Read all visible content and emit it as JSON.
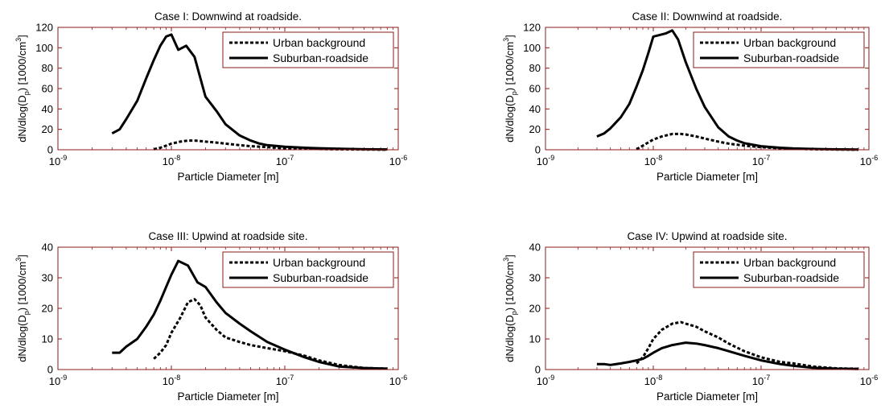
{
  "chart_data": [
    {
      "type": "line",
      "title": "Case I: Downwind at roadside.",
      "xlabel": "Particle Diameter [m]",
      "ylabel": "dN/dlog(D_p) [1000/cm^3]",
      "xscale": "log",
      "xlim": [
        1e-09,
        1e-06
      ],
      "ylim": [
        0,
        120
      ],
      "x_ticks": [
        1e-09,
        1e-08,
        1e-07,
        1e-06
      ],
      "x_tick_labels": [
        "10-9",
        "10-8",
        "10-7",
        "10-6"
      ],
      "y_ticks": [
        0,
        20,
        40,
        60,
        80,
        100,
        120
      ],
      "legend": "top-right",
      "series": [
        {
          "name": "Urban background",
          "style": "dashed",
          "x": [
            7e-09,
            8e-09,
            9e-09,
            1e-08,
            1.2e-08,
            1.4e-08,
            1.6e-08,
            1.8e-08,
            2e-08,
            2.5e-08,
            3e-08,
            4e-08,
            5e-08,
            7e-08,
            1e-07,
            1.5e-07,
            2e-07,
            3e-07,
            5e-07,
            8e-07
          ],
          "y": [
            0.5,
            2,
            4,
            6,
            8,
            9,
            9,
            8.5,
            8,
            7,
            6,
            4.5,
            3.5,
            2.5,
            1.5,
            1,
            0.7,
            0.4,
            0.2,
            0.1
          ]
        },
        {
          "name": "Suburban-roadside",
          "style": "solid",
          "x": [
            3e-09,
            3.5e-09,
            4e-09,
            5e-09,
            6e-09,
            7e-09,
            8e-09,
            9e-09,
            1e-08,
            1.15e-08,
            1.35e-08,
            1.6e-08,
            2e-08,
            2.5e-08,
            3e-08,
            4e-08,
            5e-08,
            6e-08,
            7e-08,
            1e-07,
            1.5e-07,
            2e-07,
            3e-07,
            5e-07,
            8e-07
          ],
          "y": [
            16,
            20,
            30,
            48,
            70,
            88,
            102,
            111,
            113,
            98,
            102,
            91,
            52,
            38,
            25,
            14,
            9,
            6,
            4.5,
            3,
            2,
            1.5,
            1,
            0.5,
            0.3
          ]
        }
      ]
    },
    {
      "type": "line",
      "title": "Case II: Downwind at roadside.",
      "xlabel": "Particle Diameter [m]",
      "ylabel": "dN/dlog(D_p) [1000/cm^3]",
      "xscale": "log",
      "xlim": [
        1e-09,
        1e-06
      ],
      "ylim": [
        0,
        120
      ],
      "x_ticks": [
        1e-09,
        1e-08,
        1e-07,
        1e-06
      ],
      "x_tick_labels": [
        "10-9",
        "10-8",
        "10-7",
        "10-6"
      ],
      "y_ticks": [
        0,
        20,
        40,
        60,
        80,
        100,
        120
      ],
      "legend": "top-right",
      "series": [
        {
          "name": "Urban background",
          "style": "dashed",
          "x": [
            7e-09,
            8e-09,
            1e-08,
            1.2e-08,
            1.5e-08,
            1.8e-08,
            2e-08,
            2.5e-08,
            3e-08,
            4e-08,
            5e-08,
            7e-08,
            1e-07,
            1.5e-07,
            2e-07,
            3e-07,
            5e-07,
            8e-07
          ],
          "y": [
            0.5,
            4,
            10,
            13,
            15.5,
            15.5,
            15,
            13,
            11,
            8,
            6,
            4,
            2.5,
            1.5,
            1,
            0.5,
            0.2,
            0.1
          ]
        },
        {
          "name": "Suburban-roadside",
          "style": "solid",
          "x": [
            3e-09,
            3.5e-09,
            4e-09,
            5e-09,
            6e-09,
            7e-09,
            8e-09,
            9e-09,
            1e-08,
            1.1e-08,
            1.3e-08,
            1.5e-08,
            1.7e-08,
            2e-08,
            2.5e-08,
            3e-08,
            4e-08,
            5e-08,
            6e-08,
            7e-08,
            1e-07,
            1.5e-07,
            2e-07,
            3e-07,
            5e-07,
            8e-07
          ],
          "y": [
            13,
            16,
            21,
            32,
            45,
            62,
            78,
            95,
            111,
            112,
            114,
            117,
            108,
            86,
            60,
            42,
            22,
            13,
            9,
            6.5,
            3.5,
            2,
            1.3,
            0.8,
            0.4,
            0.2
          ]
        }
      ]
    },
    {
      "type": "line",
      "title": "Case III: Upwind at roadside site.",
      "xlabel": "Particle Diameter [m]",
      "ylabel": "dN/dlog(D_p) [1000/cm^3]",
      "xscale": "log",
      "xlim": [
        1e-09,
        1e-06
      ],
      "ylim": [
        0,
        40
      ],
      "x_ticks": [
        1e-09,
        1e-08,
        1e-07,
        1e-06
      ],
      "x_tick_labels": [
        "10-9",
        "10-8",
        "10-7",
        "10-6"
      ],
      "y_ticks": [
        0,
        10,
        20,
        30,
        40
      ],
      "legend": "top-right",
      "series": [
        {
          "name": "Urban background",
          "style": "dashed",
          "x": [
            7e-09,
            8e-09,
            9e-09,
            1e-08,
            1.2e-08,
            1.4e-08,
            1.6e-08,
            1.8e-08,
            2e-08,
            2.5e-08,
            3e-08,
            4e-08,
            5e-08,
            7e-08,
            1e-07,
            1.5e-07,
            2e-07,
            3e-07,
            5e-07,
            8e-07
          ],
          "y": [
            3.5,
            5.5,
            8,
            12,
            17,
            22,
            23,
            21,
            17,
            13,
            10.5,
            9,
            8,
            7,
            6,
            4.5,
            3,
            1.5,
            0.5,
            0.3
          ]
        },
        {
          "name": "Suburban-roadside",
          "style": "solid",
          "x": [
            3e-09,
            3.5e-09,
            4e-09,
            5e-09,
            6e-09,
            7e-09,
            8e-09,
            9e-09,
            1e-08,
            1.15e-08,
            1.4e-08,
            1.7e-08,
            2e-08,
            2.5e-08,
            3e-08,
            4e-08,
            5e-08,
            7e-08,
            1e-07,
            1.5e-07,
            2e-07,
            3e-07,
            5e-07,
            8e-07
          ],
          "y": [
            5.5,
            5.5,
            7.5,
            10,
            14,
            18,
            22.5,
            27,
            31,
            35.5,
            34,
            28.5,
            27,
            22,
            18.5,
            15,
            12.5,
            9,
            6.5,
            4,
            2.5,
            1,
            0.5,
            0.3
          ]
        }
      ]
    },
    {
      "type": "line",
      "title": "Case IV: Upwind at roadside site.",
      "xlabel": "Particle Diameter [m]",
      "ylabel": "dN/dlog(D_p) [1000/cm^3]",
      "xscale": "log",
      "xlim": [
        1e-09,
        1e-06
      ],
      "ylim": [
        0,
        40
      ],
      "x_ticks": [
        1e-09,
        1e-08,
        1e-07,
        1e-06
      ],
      "x_tick_labels": [
        "10-9",
        "10-8",
        "10-7",
        "10-6"
      ],
      "y_ticks": [
        0,
        10,
        20,
        30,
        40
      ],
      "legend": "top-right",
      "series": [
        {
          "name": "Urban background",
          "style": "dashed",
          "x": [
            7e-09,
            8e-09,
            9e-09,
            1e-08,
            1.2e-08,
            1.5e-08,
            1.8e-08,
            2e-08,
            2.5e-08,
            3e-08,
            4e-08,
            5e-08,
            7e-08,
            1e-07,
            1.5e-07,
            2e-07,
            3e-07,
            5e-07,
            8e-07
          ],
          "y": [
            2,
            4,
            7,
            10,
            13,
            15,
            15.5,
            15,
            14,
            12.5,
            10.5,
            8.5,
            6,
            4,
            2.5,
            2,
            1,
            0.4,
            0.2
          ]
        },
        {
          "name": "Suburban-roadside",
          "style": "solid",
          "x": [
            3e-09,
            3.5e-09,
            4e-09,
            5e-09,
            6e-09,
            7e-09,
            8e-09,
            9e-09,
            1e-08,
            1.2e-08,
            1.5e-08,
            1.8e-08,
            2e-08,
            2.5e-08,
            3e-08,
            4e-08,
            5e-08,
            7e-08,
            1e-07,
            1.5e-07,
            2e-07,
            3e-07,
            5e-07,
            8e-07
          ],
          "y": [
            1.8,
            1.8,
            1.5,
            2,
            2.5,
            3,
            3.5,
            4.5,
            5.5,
            7,
            8,
            8.5,
            8.8,
            8.5,
            8,
            7,
            6,
            4.5,
            3,
            1.8,
            1.2,
            0.6,
            0.3,
            0.2
          ]
        }
      ]
    }
  ]
}
